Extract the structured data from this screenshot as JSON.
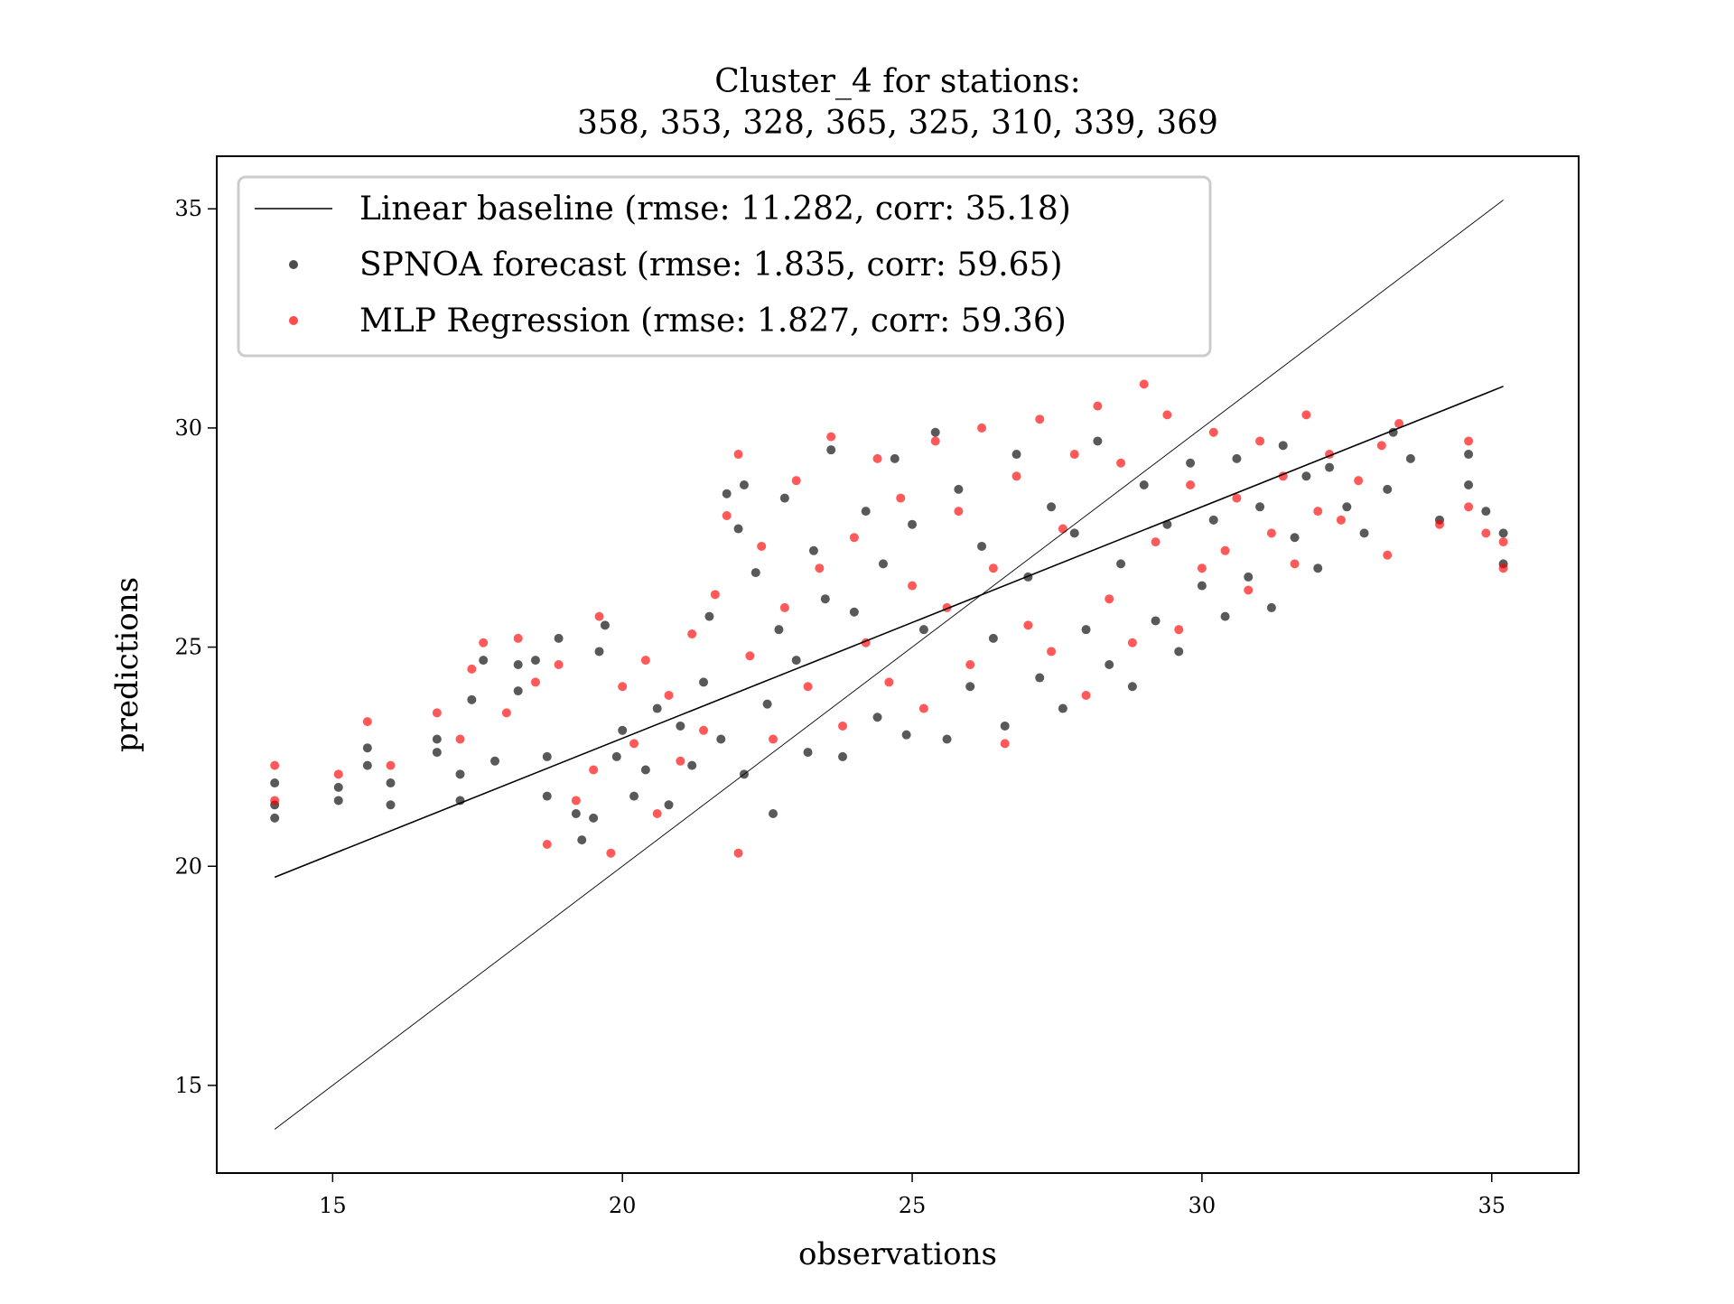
{
  "chart_data": {
    "type": "scatter",
    "title_line1": "Cluster_4 for stations:",
    "title_line2": "358, 353, 328, 365, 325, 310, 339, 369",
    "xlabel": "observations",
    "ylabel": "predictions",
    "xlim": [
      13,
      36.5
    ],
    "ylim": [
      13,
      36.2
    ],
    "xticks": [
      15,
      20,
      25,
      30,
      35
    ],
    "yticks": [
      15,
      20,
      25,
      30,
      35
    ],
    "grid": false,
    "legend_position": "upper-left",
    "lines": [
      {
        "name": "Linear baseline (rmse: 11.282, corr: 35.18)",
        "color": "#000000",
        "x": [
          14,
          35.2
        ],
        "y": [
          19.75,
          30.95
        ]
      },
      {
        "name": "identity",
        "color": "#000000",
        "x": [
          14,
          35.2
        ],
        "y": [
          14,
          35.2
        ]
      }
    ],
    "series": [
      {
        "name": "SPNOA forecast (rmse: 1.835, corr: 59.65)",
        "color": "#000000",
        "alpha": 0.65,
        "points": [
          [
            14,
            21.1
          ],
          [
            14,
            21.4
          ],
          [
            14,
            21.9
          ],
          [
            15.1,
            21.5
          ],
          [
            15.1,
            21.8
          ],
          [
            15.6,
            22.3
          ],
          [
            15.6,
            22.7
          ],
          [
            16,
            21.4
          ],
          [
            16,
            21.9
          ],
          [
            16.8,
            22.6
          ],
          [
            16.8,
            22.9
          ],
          [
            17.2,
            21.5
          ],
          [
            17.2,
            22.1
          ],
          [
            17.4,
            23.8
          ],
          [
            17.6,
            24.7
          ],
          [
            17.8,
            22.4
          ],
          [
            18.2,
            24
          ],
          [
            18.2,
            24.6
          ],
          [
            18.5,
            24.7
          ],
          [
            18.7,
            21.6
          ],
          [
            18.7,
            22.5
          ],
          [
            18.9,
            25.2
          ],
          [
            19.2,
            21.2
          ],
          [
            19.3,
            20.6
          ],
          [
            19.5,
            21.1
          ],
          [
            19.6,
            24.9
          ],
          [
            19.7,
            25.5
          ],
          [
            19.9,
            22.5
          ],
          [
            20,
            23.1
          ],
          [
            20.2,
            21.6
          ],
          [
            20.4,
            22.2
          ],
          [
            20.6,
            23.6
          ],
          [
            20.8,
            21.4
          ],
          [
            21,
            23.2
          ],
          [
            21.2,
            22.3
          ],
          [
            21.4,
            24.2
          ],
          [
            21.5,
            25.7
          ],
          [
            21.7,
            22.9
          ],
          [
            21.8,
            28.5
          ],
          [
            22,
            27.7
          ],
          [
            22.1,
            22.1
          ],
          [
            22.1,
            28.7
          ],
          [
            22.3,
            26.7
          ],
          [
            22.5,
            23.7
          ],
          [
            22.6,
            21.2
          ],
          [
            22.7,
            25.4
          ],
          [
            22.8,
            28.4
          ],
          [
            23,
            24.7
          ],
          [
            23.2,
            22.6
          ],
          [
            23.3,
            27.2
          ],
          [
            23.5,
            26.1
          ],
          [
            23.6,
            29.5
          ],
          [
            23.8,
            22.5
          ],
          [
            24,
            25.8
          ],
          [
            24.2,
            28.1
          ],
          [
            24.4,
            23.4
          ],
          [
            24.5,
            26.9
          ],
          [
            24.7,
            29.3
          ],
          [
            24.9,
            23
          ],
          [
            25,
            27.8
          ],
          [
            25.2,
            25.4
          ],
          [
            25.4,
            29.9
          ],
          [
            25.6,
            22.9
          ],
          [
            25.8,
            28.6
          ],
          [
            26,
            24.1
          ],
          [
            26.2,
            27.3
          ],
          [
            26.4,
            25.2
          ],
          [
            26.6,
            23.2
          ],
          [
            26.8,
            29.4
          ],
          [
            27,
            26.6
          ],
          [
            27.2,
            24.3
          ],
          [
            27.4,
            28.2
          ],
          [
            27.6,
            23.6
          ],
          [
            27.8,
            27.6
          ],
          [
            28,
            25.4
          ],
          [
            28.2,
            29.7
          ],
          [
            28.4,
            24.6
          ],
          [
            28.6,
            26.9
          ],
          [
            28.8,
            24.1
          ],
          [
            29,
            28.7
          ],
          [
            29.2,
            25.6
          ],
          [
            29.4,
            27.8
          ],
          [
            29.6,
            24.9
          ],
          [
            29.8,
            29.2
          ],
          [
            30,
            26.4
          ],
          [
            30.2,
            27.9
          ],
          [
            30.4,
            25.7
          ],
          [
            30.6,
            29.3
          ],
          [
            30.8,
            26.6
          ],
          [
            31,
            28.2
          ],
          [
            31.2,
            25.9
          ],
          [
            31.4,
            29.6
          ],
          [
            31.6,
            27.5
          ],
          [
            31.8,
            28.9
          ],
          [
            32,
            26.8
          ],
          [
            32.2,
            29.1
          ],
          [
            32.5,
            28.2
          ],
          [
            32.8,
            27.6
          ],
          [
            33.2,
            28.6
          ],
          [
            33.3,
            29.9
          ],
          [
            33.6,
            29.3
          ],
          [
            34.1,
            27.9
          ],
          [
            34.6,
            28.7
          ],
          [
            34.6,
            29.4
          ],
          [
            34.9,
            28.1
          ],
          [
            35.2,
            26.9
          ],
          [
            35.2,
            27.6
          ]
        ]
      },
      {
        "name": "MLP Regression (rmse: 1.827, corr: 59.36)",
        "color": "#ff0000",
        "alpha": 0.65,
        "points": [
          [
            14,
            21.5
          ],
          [
            14,
            22.3
          ],
          [
            15.1,
            22.1
          ],
          [
            15.6,
            23.3
          ],
          [
            16,
            22.3
          ],
          [
            16.8,
            23.5
          ],
          [
            17.2,
            22.9
          ],
          [
            17.4,
            24.5
          ],
          [
            17.6,
            25.1
          ],
          [
            18,
            23.5
          ],
          [
            18.2,
            25.2
          ],
          [
            18.5,
            24.2
          ],
          [
            18.7,
            20.5
          ],
          [
            18.9,
            24.6
          ],
          [
            19.2,
            21.5
          ],
          [
            19.5,
            22.2
          ],
          [
            19.6,
            25.7
          ],
          [
            19.8,
            20.3
          ],
          [
            20,
            24.1
          ],
          [
            20.2,
            22.8
          ],
          [
            20.4,
            24.7
          ],
          [
            20.6,
            21.2
          ],
          [
            20.8,
            23.9
          ],
          [
            21,
            22.4
          ],
          [
            21.2,
            25.3
          ],
          [
            21.4,
            23.1
          ],
          [
            21.6,
            26.2
          ],
          [
            21.8,
            28
          ],
          [
            22,
            20.3
          ],
          [
            22,
            29.4
          ],
          [
            22.2,
            24.8
          ],
          [
            22.4,
            27.3
          ],
          [
            22.6,
            22.9
          ],
          [
            22.8,
            25.9
          ],
          [
            23,
            28.8
          ],
          [
            23.2,
            24.1
          ],
          [
            23.4,
            26.8
          ],
          [
            23.6,
            29.8
          ],
          [
            23.8,
            23.2
          ],
          [
            24,
            27.5
          ],
          [
            24.2,
            25.1
          ],
          [
            24.4,
            29.3
          ],
          [
            24.6,
            24.2
          ],
          [
            24.8,
            28.4
          ],
          [
            25,
            26.4
          ],
          [
            25.2,
            23.6
          ],
          [
            25.4,
            29.7
          ],
          [
            25.6,
            25.9
          ],
          [
            25.8,
            28.1
          ],
          [
            26,
            24.6
          ],
          [
            26.2,
            30
          ],
          [
            26.4,
            26.8
          ],
          [
            26.6,
            22.8
          ],
          [
            26.8,
            28.9
          ],
          [
            27,
            25.5
          ],
          [
            27.2,
            30.2
          ],
          [
            27.4,
            24.9
          ],
          [
            27.6,
            27.7
          ],
          [
            27.8,
            29.4
          ],
          [
            28,
            23.9
          ],
          [
            28.2,
            30.5
          ],
          [
            28.4,
            26.1
          ],
          [
            28.6,
            29.2
          ],
          [
            28.8,
            25.1
          ],
          [
            29,
            31
          ],
          [
            29.2,
            27.4
          ],
          [
            29.4,
            30.3
          ],
          [
            29.6,
            25.4
          ],
          [
            29.8,
            28.7
          ],
          [
            30,
            26.8
          ],
          [
            30.2,
            29.9
          ],
          [
            30.4,
            27.2
          ],
          [
            30.6,
            28.4
          ],
          [
            30.8,
            26.3
          ],
          [
            31,
            29.7
          ],
          [
            31.2,
            27.6
          ],
          [
            31.4,
            28.9
          ],
          [
            31.6,
            26.9
          ],
          [
            31.8,
            30.3
          ],
          [
            32,
            28.1
          ],
          [
            32.2,
            29.4
          ],
          [
            32.4,
            27.9
          ],
          [
            32.7,
            28.8
          ],
          [
            33.1,
            29.6
          ],
          [
            33.2,
            27.1
          ],
          [
            33.4,
            30.1
          ],
          [
            34.1,
            27.8
          ],
          [
            34.6,
            28.2
          ],
          [
            34.6,
            29.7
          ],
          [
            34.9,
            27.6
          ],
          [
            35.2,
            26.8
          ],
          [
            35.2,
            27.4
          ]
        ]
      }
    ]
  }
}
